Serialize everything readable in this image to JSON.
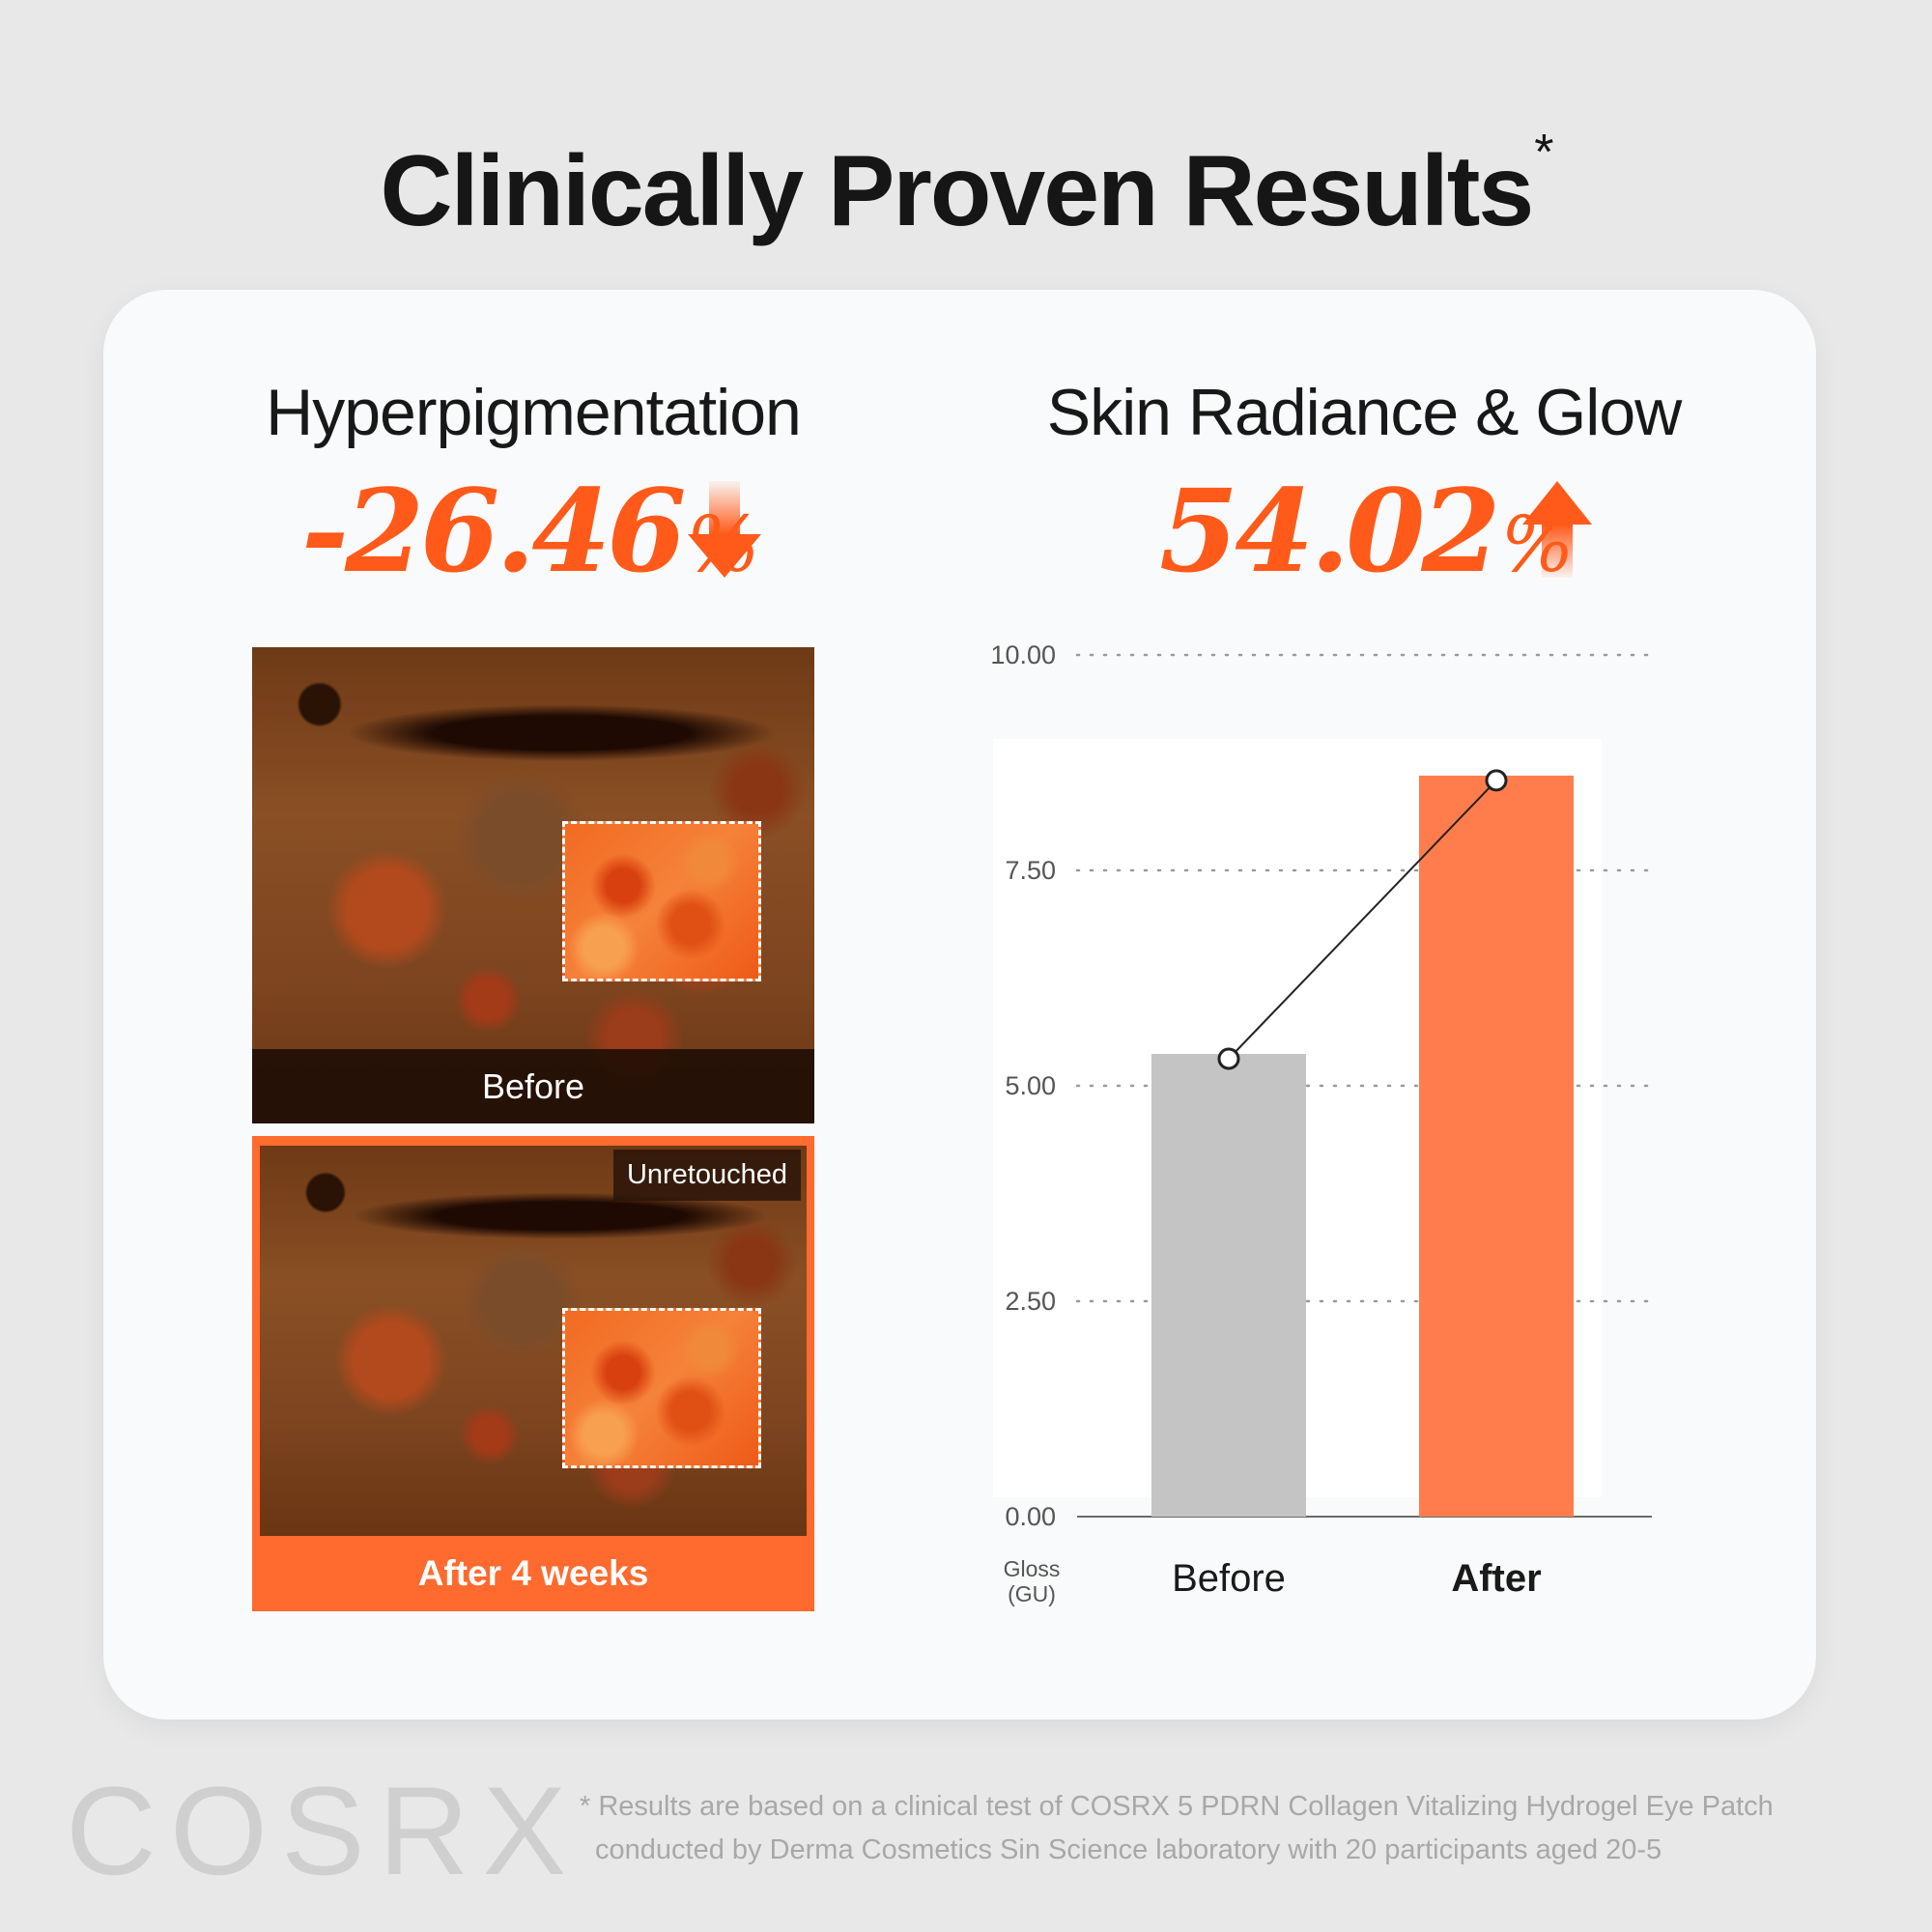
{
  "title": "Clinically Proven Results",
  "title_mark": "*",
  "left_section": {
    "title": "Hyperpigmentation",
    "stat_value": "-26.46",
    "stat_unit": "%",
    "direction": "down",
    "before_label": "Before",
    "after_label": "After 4 weeks",
    "badge": "Unretouched"
  },
  "right_section": {
    "title": "Skin Radiance & Glow",
    "stat_value": "54.02",
    "stat_unit": "%",
    "direction": "up"
  },
  "colors": {
    "accent": "#ff5a1a",
    "after_bar": "#ff7d4d",
    "before_bar": "#c4c4c4",
    "after_panel": "#ff6a2e"
  },
  "chart_data": {
    "type": "bar",
    "categories": [
      "Before",
      "After"
    ],
    "values": [
      5.37,
      8.6
    ],
    "ylabel": "Gloss (GU)",
    "ylabel_line1": "Gloss",
    "ylabel_line2": "(GU)",
    "ylim": [
      0,
      10
    ],
    "yticks": [
      "0.00",
      "2.50",
      "5.00",
      "7.50",
      "10.00"
    ],
    "ytick_values": [
      0,
      2.5,
      5,
      7.5,
      10
    ],
    "grid": "horizontal dotted",
    "trend_line": true
  },
  "footer": {
    "logo": "COSRX",
    "disclaimer_line1": "* Results are based on a clinical test of COSRX 5 PDRN Collagen Vitalizing Hydrogel Eye Patch",
    "disclaimer_line2": "conducted by Derma Cosmetics Sin Science laboratory with 20 participants aged 20-5"
  }
}
